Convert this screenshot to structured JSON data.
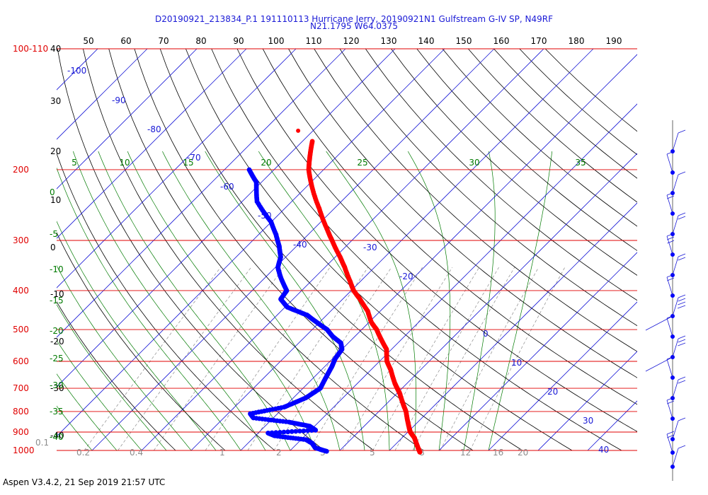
{
  "title_line1": "D20190921_213834_P.1 191110113 Hurricane Jerry, 20190921N1 Gulfstream G-IV SP, N49RF",
  "title_line2": "N21.1795 W64.0375",
  "footer": "Aspen V3.4.2, 21 Sep 2019  21:57 UTC",
  "colors": {
    "isobar": "#e00000",
    "temperature": "#ff0000",
    "dewpoint": "#0000ff",
    "isotherm": "#1a1ad6",
    "dry_adiabat": "#000000",
    "moist_adiabat": "#007a00",
    "mixing_ratio": "#8c8c8c"
  },
  "chart_data": {
    "type": "scatter",
    "diagram": "skew-t log-p",
    "pressure_axis": {
      "range_hpa": [
        100,
        1000
      ],
      "scale": "log",
      "labels": [
        {
          "p": 100,
          "text": "100-110"
        },
        {
          "p": 200,
          "text": "200"
        },
        {
          "p": 300,
          "text": "300"
        },
        {
          "p": 400,
          "text": "400"
        },
        {
          "p": 500,
          "text": "500"
        },
        {
          "p": 600,
          "text": "600"
        },
        {
          "p": 700,
          "text": "700"
        },
        {
          "p": 800,
          "text": "800"
        },
        {
          "p": 900,
          "text": "900"
        },
        {
          "p": 1000,
          "text": "1000"
        }
      ]
    },
    "top_scale": [
      "50",
      "60",
      "70",
      "80",
      "90",
      "100",
      "110",
      "120",
      "130",
      "140",
      "150",
      "160",
      "170",
      "180",
      "190"
    ],
    "left_scale": [
      "40",
      "30",
      "20",
      "10",
      "0",
      "-10",
      "-20",
      "-30",
      "-40"
    ],
    "isotherm_labels": [
      "-100",
      "-90",
      "-80",
      "-70",
      "-60",
      "-50",
      "-40",
      "-30",
      "-20",
      "0",
      "10",
      "20",
      "30",
      "40"
    ],
    "moist_adiabat_labels_top": [
      "5",
      "10",
      "15",
      "20",
      "25",
      "30",
      "35"
    ],
    "moist_adiabat_labels_left": [
      "0",
      "-5",
      "-10",
      "-15",
      "-20",
      "-25",
      "-30",
      "-35",
      "-40"
    ],
    "mixing_ratio_labels": [
      "0.1",
      "0.2",
      "0.4",
      "1",
      "2",
      "3",
      "5",
      "8",
      "12",
      "16",
      "20"
    ],
    "temperature_c": [
      {
        "p": 170,
        "t": -58.0
      },
      {
        "p": 185,
        "t": -55.5
      },
      {
        "p": 200,
        "t": -53.0
      },
      {
        "p": 220,
        "t": -49.0
      },
      {
        "p": 250,
        "t": -43.0
      },
      {
        "p": 280,
        "t": -37.5
      },
      {
        "p": 300,
        "t": -34.0
      },
      {
        "p": 330,
        "t": -29.0
      },
      {
        "p": 350,
        "t": -26.0
      },
      {
        "p": 380,
        "t": -22.0
      },
      {
        "p": 400,
        "t": -19.5
      },
      {
        "p": 420,
        "t": -16.5
      },
      {
        "p": 450,
        "t": -12.5
      },
      {
        "p": 480,
        "t": -9.5
      },
      {
        "p": 500,
        "t": -7.0
      },
      {
        "p": 530,
        "t": -4.0
      },
      {
        "p": 560,
        "t": -1.0
      },
      {
        "p": 600,
        "t": 1.5
      },
      {
        "p": 630,
        "t": 4.0
      },
      {
        "p": 680,
        "t": 7.5
      },
      {
        "p": 700,
        "t": 9.0
      },
      {
        "p": 720,
        "t": 10.5
      },
      {
        "p": 760,
        "t": 13.0
      },
      {
        "p": 800,
        "t": 15.5
      },
      {
        "p": 840,
        "t": 17.5
      },
      {
        "p": 880,
        "t": 19.5
      },
      {
        "p": 900,
        "t": 20.5
      },
      {
        "p": 930,
        "t": 22.5
      },
      {
        "p": 960,
        "t": 24.0
      },
      {
        "p": 990,
        "t": 25.5
      },
      {
        "p": 1010,
        "t": 26.5
      }
    ],
    "temperature_isolated_point": {
      "p": 160,
      "t": -63.0
    },
    "dewpoint_c": [
      {
        "p": 200,
        "t": -65.0
      },
      {
        "p": 215,
        "t": -61.0
      },
      {
        "p": 240,
        "t": -57.0
      },
      {
        "p": 270,
        "t": -50.0
      },
      {
        "p": 290,
        "t": -46.5
      },
      {
        "p": 310,
        "t": -43.5
      },
      {
        "p": 330,
        "t": -41.0
      },
      {
        "p": 350,
        "t": -39.5
      },
      {
        "p": 370,
        "t": -37.0
      },
      {
        "p": 400,
        "t": -33.0
      },
      {
        "p": 420,
        "t": -32.5
      },
      {
        "p": 440,
        "t": -29.5
      },
      {
        "p": 460,
        "t": -24.0
      },
      {
        "p": 480,
        "t": -20.5
      },
      {
        "p": 500,
        "t": -17.0
      },
      {
        "p": 520,
        "t": -14.5
      },
      {
        "p": 540,
        "t": -11.5
      },
      {
        "p": 560,
        "t": -10.0
      },
      {
        "p": 590,
        "t": -9.5
      },
      {
        "p": 620,
        "t": -8.5
      },
      {
        "p": 660,
        "t": -7.5
      },
      {
        "p": 700,
        "t": -6.5
      },
      {
        "p": 740,
        "t": -7.5
      },
      {
        "p": 780,
        "t": -10.0
      },
      {
        "p": 810,
        "t": -15.5
      },
      {
        "p": 830,
        "t": -14.0
      },
      {
        "p": 850,
        "t": -6.0
      },
      {
        "p": 870,
        "t": -1.0
      },
      {
        "p": 890,
        "t": 1.0
      },
      {
        "p": 905,
        "t": -8.0
      },
      {
        "p": 920,
        "t": -6.0
      },
      {
        "p": 940,
        "t": 1.0
      },
      {
        "p": 960,
        "t": 3.0
      },
      {
        "p": 985,
        "t": 4.5
      },
      {
        "p": 1005,
        "t": 7.5
      }
    ],
    "wind_barbs": [
      {
        "p": 130,
        "kt": 10
      },
      {
        "p": 160,
        "kt": 5
      },
      {
        "p": 185,
        "kt": 10
      },
      {
        "p": 215,
        "kt": 15
      },
      {
        "p": 250,
        "kt": 20
      },
      {
        "p": 290,
        "kt": 25
      },
      {
        "p": 340,
        "kt": 20
      },
      {
        "p": 400,
        "kt": 15
      },
      {
        "p": 470,
        "kt": 35
      },
      {
        "p": 520,
        "kt": 5
      },
      {
        "p": 600,
        "kt": 25
      },
      {
        "p": 700,
        "kt": 5
      },
      {
        "p": 780,
        "kt": 15
      },
      {
        "p": 870,
        "kt": 15
      },
      {
        "p": 950,
        "kt": 10
      },
      {
        "p": 980,
        "kt": 15
      },
      {
        "p": 1010,
        "kt": 10
      }
    ]
  }
}
